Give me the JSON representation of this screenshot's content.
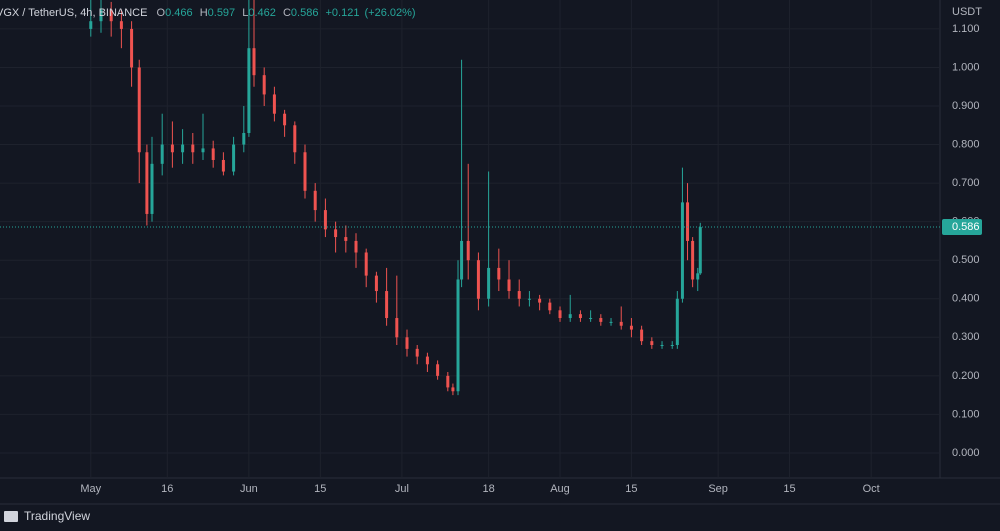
{
  "chart_data": {
    "type": "candlestick",
    "legend": {
      "symbol": "VGX / TetherUS",
      "interval": "4h",
      "exchange": "BINANCE",
      "ohlc_labels": [
        "O",
        "H",
        "L",
        "C"
      ],
      "ohlc_values": [
        0.466,
        0.597,
        0.462,
        0.586
      ],
      "change": "+0.121",
      "change_pct": "(+26.02%)"
    },
    "y_unit": "USDT",
    "last_price": 0.586,
    "brand": "TradingView",
    "up_color": "#26a69a",
    "down_color": "#ef5350",
    "x": [
      0,
      2,
      4,
      6,
      8,
      9.5,
      11,
      12,
      14,
      16,
      18,
      20,
      22,
      24,
      26,
      28,
      30,
      31,
      32,
      34,
      36,
      38,
      40,
      42,
      44,
      46,
      48,
      50,
      52,
      54,
      56,
      58,
      60,
      62,
      64,
      66,
      68,
      70,
      71,
      72,
      72.7,
      74,
      76,
      78,
      80,
      82,
      84,
      86,
      88,
      90,
      92,
      94,
      96,
      98,
      100,
      102,
      104,
      106,
      108,
      110,
      112,
      114,
      115,
      116,
      117,
      118,
      119,
      119.5
    ],
    "open": [
      1.1,
      1.12,
      1.15,
      1.12,
      1.1,
      1.0,
      0.78,
      0.62,
      0.75,
      0.8,
      0.78,
      0.8,
      0.78,
      0.79,
      0.76,
      0.73,
      0.8,
      0.83,
      1.05,
      0.98,
      0.93,
      0.88,
      0.85,
      0.78,
      0.68,
      0.63,
      0.58,
      0.56,
      0.55,
      0.52,
      0.46,
      0.42,
      0.35,
      0.3,
      0.27,
      0.25,
      0.23,
      0.2,
      0.17,
      0.16,
      0.45,
      0.55,
      0.5,
      0.4,
      0.48,
      0.45,
      0.42,
      0.4,
      0.4,
      0.39,
      0.37,
      0.35,
      0.36,
      0.35,
      0.35,
      0.34,
      0.34,
      0.33,
      0.32,
      0.29,
      0.28,
      0.28,
      0.28,
      0.4,
      0.65,
      0.55,
      0.45,
      0.466
    ],
    "high": [
      1.2,
      1.18,
      1.17,
      1.15,
      1.12,
      1.02,
      0.8,
      0.82,
      0.88,
      0.86,
      0.84,
      0.83,
      0.88,
      0.81,
      0.78,
      0.82,
      0.9,
      1.2,
      1.18,
      1.0,
      0.95,
      0.89,
      0.86,
      0.8,
      0.7,
      0.66,
      0.6,
      0.59,
      0.57,
      0.53,
      0.47,
      0.48,
      0.46,
      0.32,
      0.28,
      0.26,
      0.24,
      0.21,
      0.18,
      0.5,
      1.02,
      0.75,
      0.52,
      0.73,
      0.53,
      0.5,
      0.45,
      0.42,
      0.41,
      0.4,
      0.38,
      0.41,
      0.37,
      0.37,
      0.36,
      0.35,
      0.38,
      0.35,
      0.33,
      0.3,
      0.29,
      0.29,
      0.42,
      0.74,
      0.7,
      0.56,
      0.48,
      0.597
    ],
    "low": [
      1.08,
      1.09,
      1.08,
      1.05,
      0.95,
      0.7,
      0.59,
      0.6,
      0.72,
      0.74,
      0.75,
      0.75,
      0.76,
      0.74,
      0.72,
      0.72,
      0.78,
      0.82,
      0.95,
      0.9,
      0.86,
      0.82,
      0.75,
      0.66,
      0.6,
      0.56,
      0.52,
      0.52,
      0.48,
      0.43,
      0.39,
      0.33,
      0.28,
      0.25,
      0.23,
      0.21,
      0.19,
      0.16,
      0.15,
      0.15,
      0.43,
      0.45,
      0.37,
      0.38,
      0.42,
      0.4,
      0.38,
      0.38,
      0.37,
      0.36,
      0.34,
      0.34,
      0.34,
      0.34,
      0.33,
      0.33,
      0.32,
      0.3,
      0.28,
      0.27,
      0.27,
      0.27,
      0.27,
      0.39,
      0.5,
      0.43,
      0.42,
      0.462
    ],
    "close": [
      1.12,
      1.15,
      1.12,
      1.1,
      1.0,
      0.78,
      0.62,
      0.75,
      0.8,
      0.78,
      0.8,
      0.78,
      0.79,
      0.76,
      0.73,
      0.8,
      0.83,
      1.05,
      0.98,
      0.93,
      0.88,
      0.85,
      0.78,
      0.68,
      0.63,
      0.58,
      0.56,
      0.55,
      0.52,
      0.46,
      0.42,
      0.35,
      0.3,
      0.27,
      0.25,
      0.23,
      0.2,
      0.17,
      0.16,
      0.45,
      0.55,
      0.5,
      0.4,
      0.48,
      0.45,
      0.42,
      0.4,
      0.4,
      0.39,
      0.37,
      0.35,
      0.36,
      0.35,
      0.35,
      0.34,
      0.34,
      0.33,
      0.32,
      0.29,
      0.28,
      0.28,
      0.28,
      0.4,
      0.65,
      0.55,
      0.45,
      0.466,
      0.586
    ],
    "xlim": [
      -17.8,
      166.5
    ],
    "xticks": [
      {
        "value": 0,
        "label": "May"
      },
      {
        "value": 15,
        "label": "16"
      },
      {
        "value": 31,
        "label": "Jun"
      },
      {
        "value": 45,
        "label": "15"
      },
      {
        "value": 61,
        "label": "Jul"
      },
      {
        "value": 78,
        "label": "18"
      },
      {
        "value": 92,
        "label": "Aug"
      },
      {
        "value": 106,
        "label": "15"
      },
      {
        "value": 123,
        "label": "Sep"
      },
      {
        "value": 137,
        "label": "15"
      },
      {
        "value": 153,
        "label": "Oct"
      }
    ],
    "ylim": [
      -0.065,
      1.175
    ],
    "yticks": [
      {
        "value": 0,
        "label": "0.000"
      },
      {
        "value": 0.1,
        "label": "0.100"
      },
      {
        "value": 0.2,
        "label": "0.200"
      },
      {
        "value": 0.3,
        "label": "0.300"
      },
      {
        "value": 0.4,
        "label": "0.400"
      },
      {
        "value": 0.5,
        "label": "0.500"
      },
      {
        "value": 0.6,
        "label": "0.600"
      },
      {
        "value": 0.7,
        "label": "0.700"
      },
      {
        "value": 0.8,
        "label": "0.800"
      },
      {
        "value": 0.9,
        "label": "0.900"
      },
      {
        "value": 1,
        "label": "1.000"
      },
      {
        "value": 1.1,
        "label": "1.100"
      }
    ],
    "grid": true
  }
}
